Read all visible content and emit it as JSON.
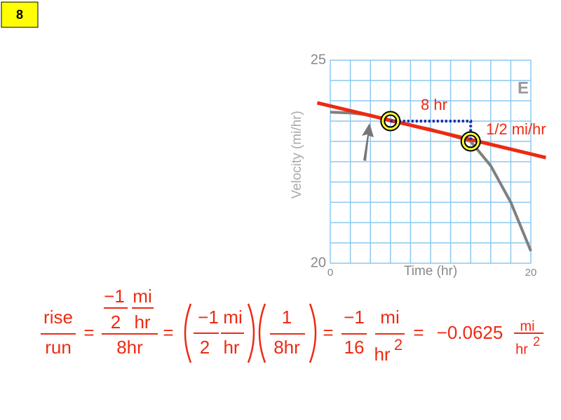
{
  "badge": "8",
  "chart_data": {
    "type": "line",
    "xlabel": "Time (hr)",
    "ylabel": "Velocity (mi/hr)",
    "panel_label": "E",
    "xlim": [
      0,
      20
    ],
    "ylim": [
      20,
      25
    ],
    "xticks": [
      0,
      20
    ],
    "yticks": [
      20,
      25
    ],
    "xgrid": [
      0,
      2,
      4,
      6,
      8,
      10,
      12,
      14,
      16,
      18,
      20
    ],
    "ygrid": [
      20,
      20.5,
      21,
      21.5,
      22,
      22.5,
      23,
      23.5,
      24,
      24.5,
      25
    ],
    "series": [
      {
        "color": "#808080",
        "x": [
          0,
          2,
          4,
          6,
          8,
          10,
          12,
          14,
          16,
          18,
          20
        ],
        "values": [
          23.72,
          23.7,
          23.65,
          23.5,
          23.4,
          23.3,
          23.15,
          23.0,
          22.4,
          21.5,
          20.3
        ]
      },
      {
        "color": "#ee2a12",
        "x": [
          -1.3,
          21.5
        ],
        "values": [
          23.95,
          22.6
        ]
      }
    ],
    "points": {
      "x": [
        6,
        14
      ],
      "values": [
        23.5,
        23.0
      ],
      "color": "#ffff33"
    },
    "annotations": [
      "8 hr",
      "1/2 mi/hr"
    ]
  },
  "equation": [
    "rise",
    "run",
    "=",
    "−1",
    "mi",
    "2",
    "hr",
    "8hr",
    "=",
    "−1",
    "mi",
    "2",
    "hr",
    "1",
    "8hr",
    "=",
    "−1",
    "16",
    "mi",
    "hr",
    "2",
    "=",
    "−0.0625",
    "mi",
    "hr",
    "2"
  ]
}
